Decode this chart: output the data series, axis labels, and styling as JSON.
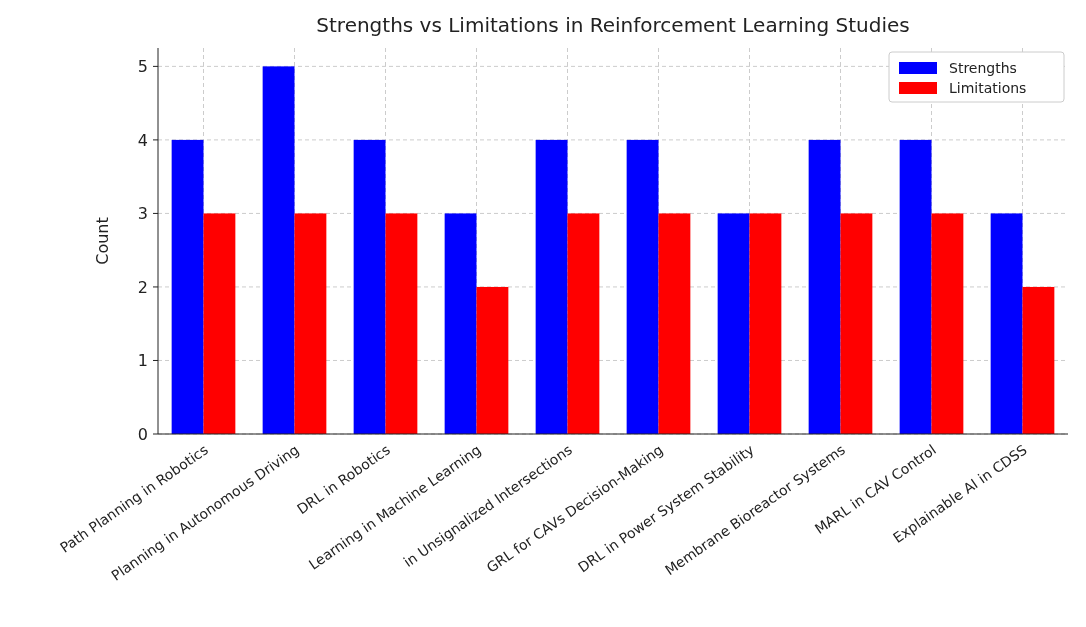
{
  "chart_data": {
    "type": "bar",
    "title": "Strengths vs Limitations in Reinforcement Learning Studies",
    "ylabel": "Count",
    "categories": [
      "Path Planning in Robotics",
      "Planning in Autonomous Driving",
      "DRL in Robotics",
      "Learning in Machine Learning",
      "in Unsignalized Intersections",
      "GRL for CAVs Decision-Making",
      "DRL in Power System Stability",
      "Membrane Bioreactor Systems",
      "MARL in CAV Control",
      "Explainable AI in CDSS"
    ],
    "series": [
      {
        "name": "Strengths",
        "color": "#0000ff",
        "values": [
          4,
          5,
          4,
          3,
          4,
          4,
          3,
          4,
          4,
          3
        ]
      },
      {
        "name": "Limitations",
        "color": "#ff0000",
        "values": [
          3,
          3,
          3,
          2,
          3,
          3,
          3,
          3,
          3,
          2
        ]
      }
    ],
    "ylim": [
      0,
      5.25
    ],
    "yticks": [
      0,
      1,
      2,
      3,
      4,
      5
    ],
    "grid": true,
    "legend": "top right"
  }
}
